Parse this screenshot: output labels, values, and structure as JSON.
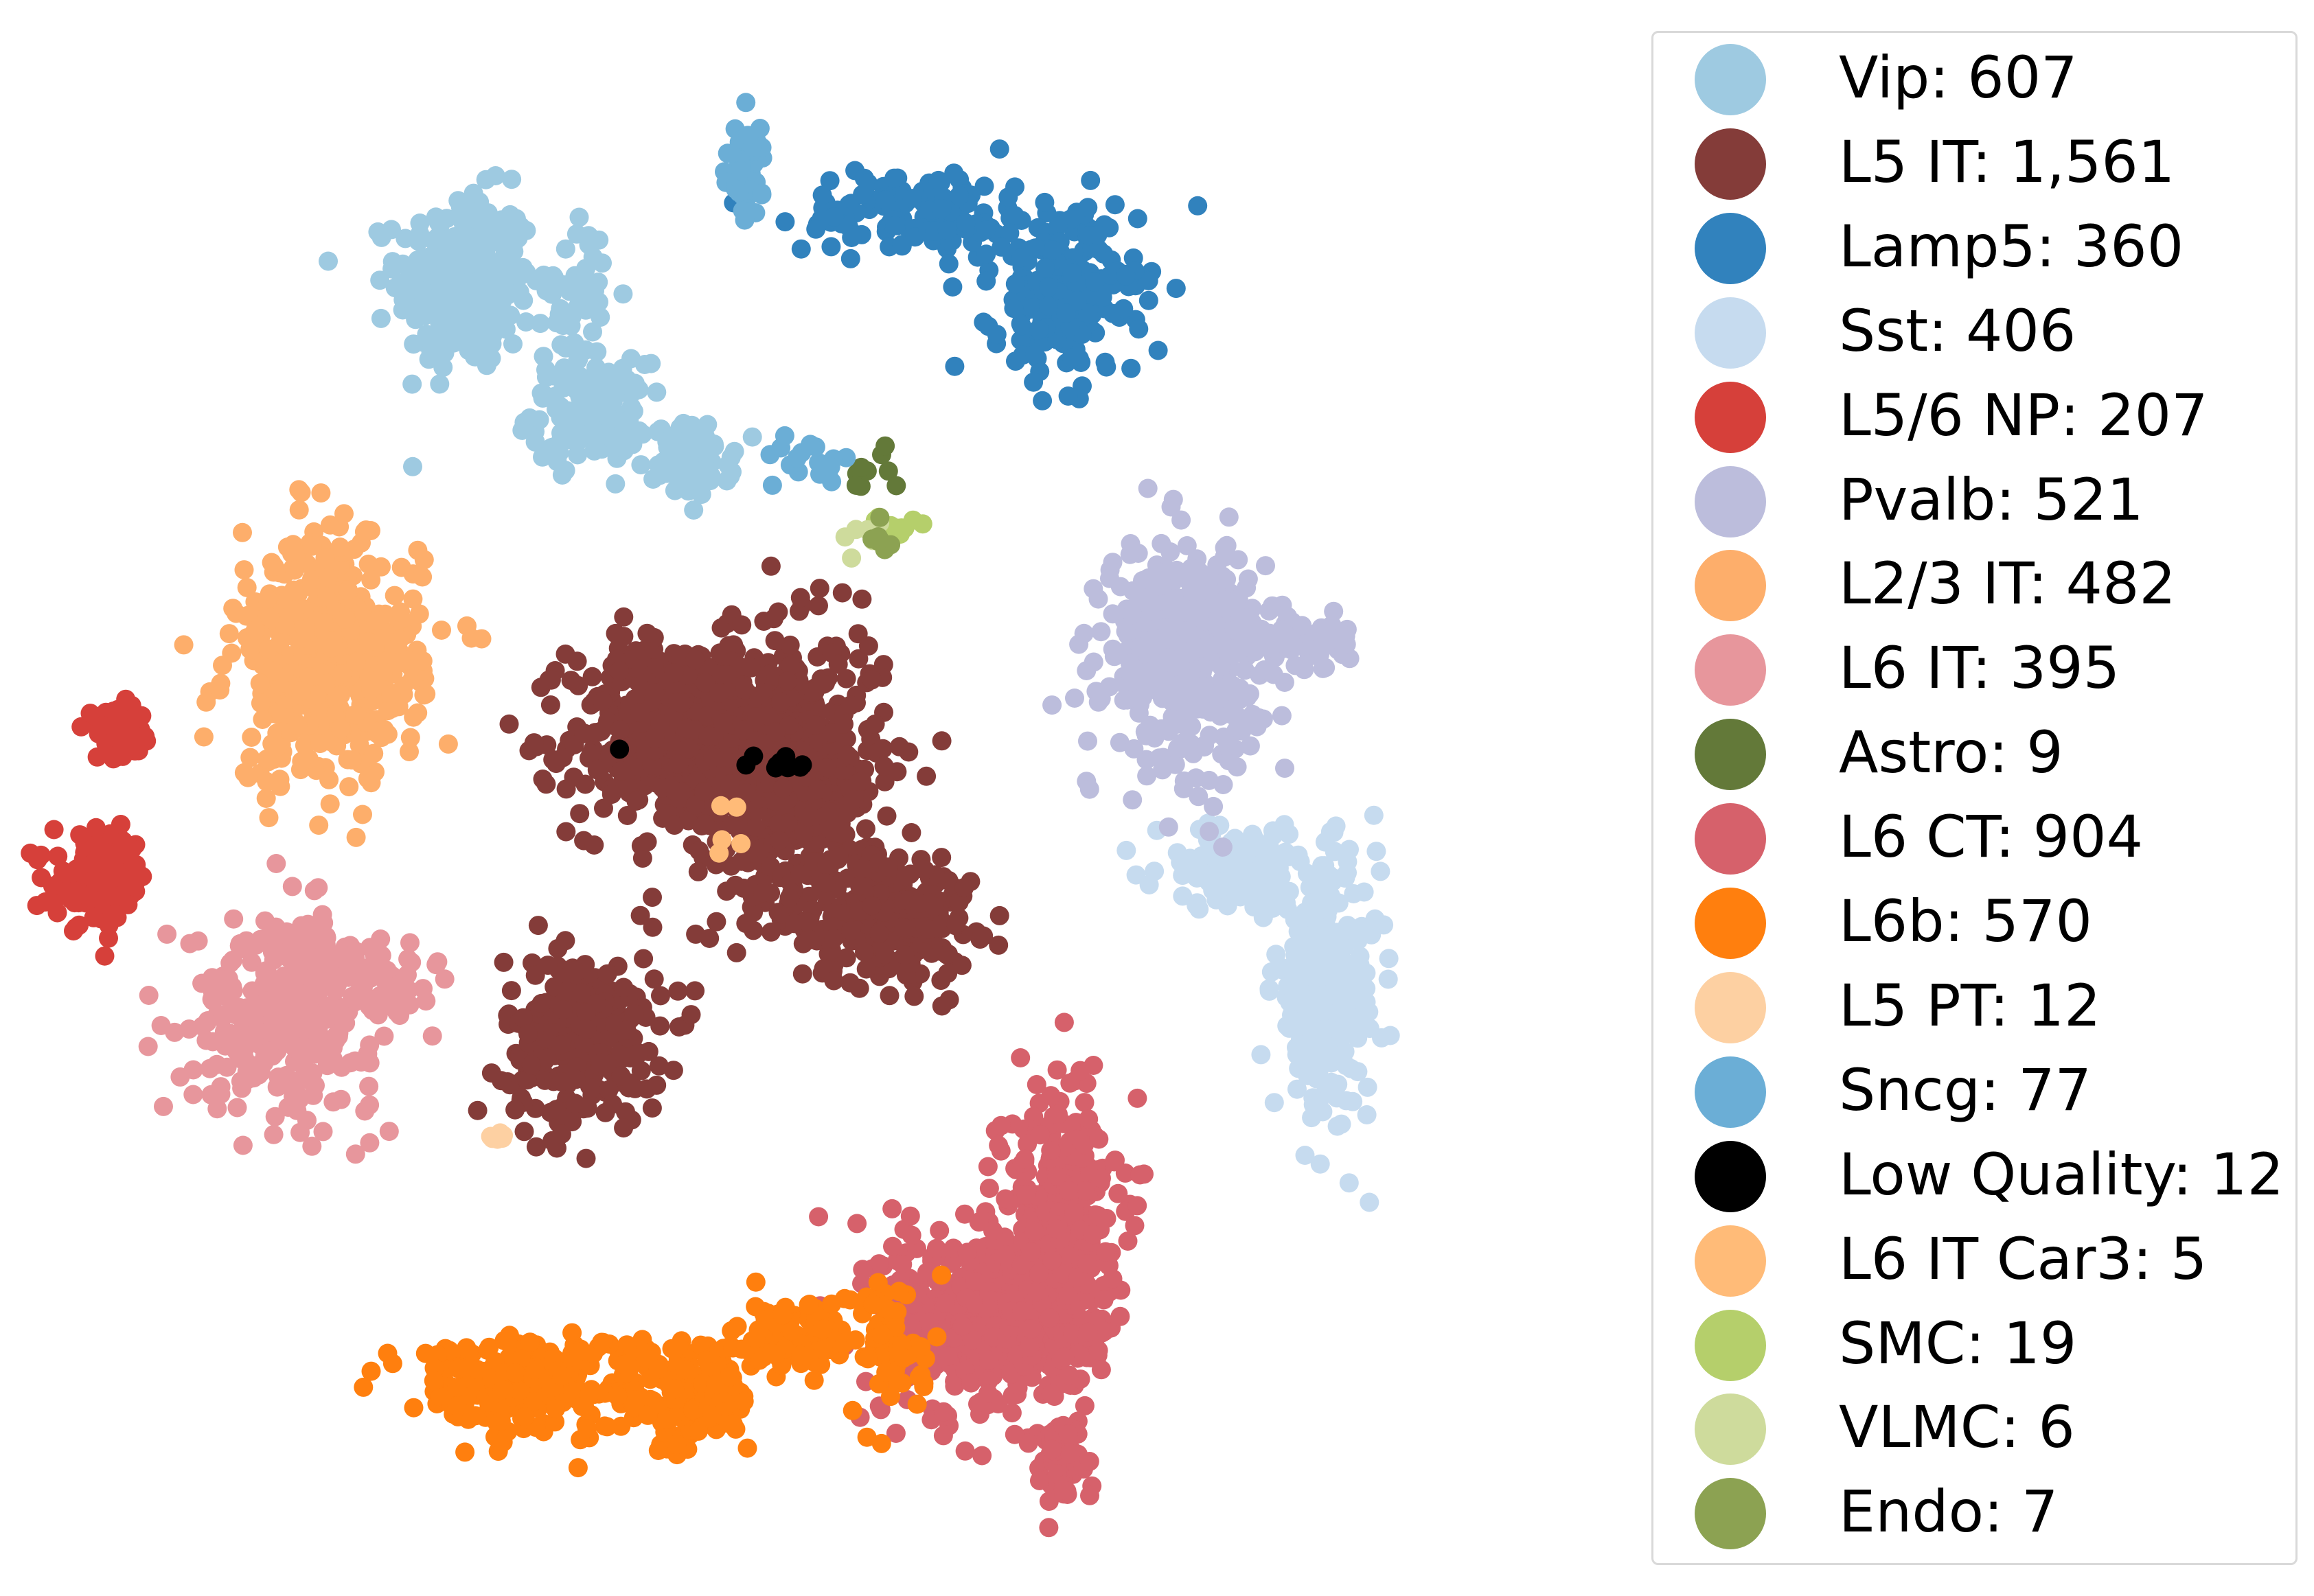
{
  "chart_data": {
    "type": "scatter",
    "title": "",
    "xlabel": "",
    "ylabel": "",
    "axes_visible": false,
    "grid": false,
    "legend_placement": "outside-right",
    "xlim": [
      -60,
      60
    ],
    "ylim": [
      -55,
      55
    ],
    "legend": [
      {
        "label": "Vip: 607",
        "color": "#9ecae1"
      },
      {
        "label": "L5 IT: 1,561",
        "color": "#843c39"
      },
      {
        "label": "Lamp5: 360",
        "color": "#3182bd"
      },
      {
        "label": "Sst: 406",
        "color": "#c6dbef"
      },
      {
        "label": "L5/6 NP: 207",
        "color": "#d6403a"
      },
      {
        "label": "Pvalb: 521",
        "color": "#bcbddc"
      },
      {
        "label": "L2/3 IT: 482",
        "color": "#fdae6b"
      },
      {
        "label": "L6 IT: 395",
        "color": "#e7969c"
      },
      {
        "label": "Astro: 9",
        "color": "#637939"
      },
      {
        "label": "L6 CT: 904",
        "color": "#d6616b"
      },
      {
        "label": "L6b: 570",
        "color": "#ff7f0e"
      },
      {
        "label": "L5 PT: 12",
        "color": "#fdd0a2"
      },
      {
        "label": "Sncg: 77",
        "color": "#6baed6"
      },
      {
        "label": "Low Quality: 12",
        "color": "#000000"
      },
      {
        "label": "L6 IT Car3: 5",
        "color": "#ffbb78"
      },
      {
        "label": "SMC: 19",
        "color": "#b5cf6b"
      },
      {
        "label": "VLMC: 6",
        "color": "#cedb9c"
      },
      {
        "label": "Endo: 7",
        "color": "#8ca252"
      }
    ],
    "series": [
      {
        "name": "Vip: 607",
        "color": "#9ecae1",
        "clusters": [
          {
            "x": -27.5,
            "y": 37.5,
            "sx": 2.6,
            "sy": 3.2,
            "n": 320
          },
          {
            "x": -18,
            "y": 28,
            "sx": 2.2,
            "sy": 1.8,
            "n": 150
          },
          {
            "x": -10,
            "y": 24.5,
            "sx": 1.5,
            "sy": 1.3,
            "n": 90
          },
          {
            "x": -19,
            "y": 37,
            "sx": 1.2,
            "sy": 2.6,
            "n": 47
          }
        ]
      },
      {
        "name": "L5 IT: 1,561",
        "color": "#843c39",
        "clusters": [
          {
            "x": -11,
            "y": 4.5,
            "sx": 4.2,
            "sy": 3.6,
            "n": 520
          },
          {
            "x": -2.5,
            "y": 2,
            "sx": 3.6,
            "sy": 5.0,
            "n": 520
          },
          {
            "x": 4.5,
            "y": -8.5,
            "sx": 3.5,
            "sy": 2.5,
            "n": 240
          },
          {
            "x": -18.5,
            "y": -17.5,
            "sx": 3.0,
            "sy": 3.0,
            "n": 281
          }
        ]
      },
      {
        "name": "Lamp5: 360",
        "color": "#3182bd",
        "clusters": [
          {
            "x": 7.5,
            "y": 42.5,
            "sx": 4.5,
            "sy": 1.6,
            "n": 140
          },
          {
            "x": 18.5,
            "y": 36.5,
            "sx": 2.8,
            "sy": 3.0,
            "n": 220
          }
        ]
      },
      {
        "name": "Sst: 406",
        "color": "#c6dbef",
        "clusters": [
          {
            "x": 32,
            "y": -5,
            "sx": 3.2,
            "sy": 1.5,
            "n": 140
          },
          {
            "x": 38.5,
            "y": -14,
            "sx": 2.0,
            "sy": 4.5,
            "n": 266
          }
        ]
      },
      {
        "name": "L5/6 NP: 207",
        "color": "#d6403a",
        "clusters": [
          {
            "x": -54,
            "y": 4.5,
            "sx": 1.3,
            "sy": 0.9,
            "n": 60
          },
          {
            "x": -55.5,
            "y": -6,
            "sx": 1.8,
            "sy": 1.6,
            "n": 147
          }
        ]
      },
      {
        "name": "Pvalb: 521",
        "color": "#bcbddc",
        "clusters": [
          {
            "x": 27.5,
            "y": 10.5,
            "sx": 3.0,
            "sy": 4.0,
            "n": 421
          },
          {
            "x": 35,
            "y": 11.5,
            "sx": 2.6,
            "sy": 1.2,
            "n": 100
          }
        ]
      },
      {
        "name": "L2/3 IT: 482",
        "color": "#fdae6b",
        "clusters": [
          {
            "x": -38,
            "y": 10,
            "sx": 3.6,
            "sy": 4.5,
            "n": 482
          }
        ]
      },
      {
        "name": "L6 IT: 395",
        "color": "#e7969c",
        "clusters": [
          {
            "x": -41.5,
            "y": -15.5,
            "sx": 3.5,
            "sy": 3.5,
            "n": 330
          },
          {
            "x": -34,
            "y": -13.5,
            "sx": 2.0,
            "sy": 1.4,
            "n": 65
          }
        ]
      },
      {
        "name": "Astro: 9",
        "color": "#637939",
        "clusters": [
          {
            "x": 3.5,
            "y": 23.5,
            "sx": 1.2,
            "sy": 0.9,
            "n": 9
          }
        ]
      },
      {
        "name": "L6 CT: 904",
        "color": "#d6616b",
        "clusters": [
          {
            "x": 12.5,
            "y": -38,
            "sx": 4.0,
            "sy": 3.5,
            "n": 500
          },
          {
            "x": 18,
            "y": -31,
            "sx": 2.2,
            "sy": 5.0,
            "n": 354
          },
          {
            "x": 18,
            "y": -48,
            "sx": 1.1,
            "sy": 1.6,
            "n": 50
          }
        ]
      },
      {
        "name": "L6b: 570",
        "color": "#ff7f0e",
        "clusters": [
          {
            "x": -23,
            "y": -42.5,
            "sx": 4.2,
            "sy": 1.8,
            "n": 260
          },
          {
            "x": -10.5,
            "y": -43.5,
            "sx": 2.4,
            "sy": 2.0,
            "n": 150
          },
          {
            "x": -2,
            "y": -39,
            "sx": 2.2,
            "sy": 1.5,
            "n": 100
          },
          {
            "x": 5.5,
            "y": -40,
            "sx": 1.5,
            "sy": 2.5,
            "n": 60
          }
        ]
      },
      {
        "name": "L5 PT: 12",
        "color": "#fdd0a2",
        "clusters": [
          {
            "x": -25,
            "y": -24.5,
            "sx": 0.4,
            "sy": 0.2,
            "n": 12
          }
        ]
      },
      {
        "name": "Sncg: 77",
        "color": "#6baed6",
        "clusters": [
          {
            "x": -6,
            "y": 45.5,
            "sx": 0.8,
            "sy": 1.8,
            "n": 60
          },
          {
            "x": -2,
            "y": 24.5,
            "sx": 2.0,
            "sy": 1.0,
            "n": 17
          }
        ]
      },
      {
        "name": "Low Quality: 12",
        "color": "#000000",
        "clusters": [
          {
            "x": -3,
            "y": 2.5,
            "sx": 1.0,
            "sy": 0.3,
            "n": 11
          },
          {
            "x": -15.5,
            "y": 3.5,
            "sx": 0.2,
            "sy": 0.2,
            "n": 1
          }
        ]
      },
      {
        "name": "L6 IT Car3: 5",
        "color": "#ffbb78",
        "clusters": [
          {
            "x": -7,
            "y": -2,
            "sx": 1.5,
            "sy": 1.2,
            "n": 5
          }
        ]
      },
      {
        "name": "SMC: 19",
        "color": "#b5cf6b",
        "clusters": [
          {
            "x": 5.5,
            "y": 19.5,
            "sx": 0.8,
            "sy": 0.4,
            "n": 19
          }
        ]
      },
      {
        "name": "VLMC: 6",
        "color": "#cedb9c",
        "clusters": [
          {
            "x": 3,
            "y": 20,
            "sx": 1.0,
            "sy": 1.0,
            "n": 6
          }
        ]
      },
      {
        "name": "Endo: 7",
        "color": "#8ca252",
        "clusters": [
          {
            "x": 4.5,
            "y": 18.5,
            "sx": 0.5,
            "sy": 0.5,
            "n": 7
          }
        ]
      }
    ]
  }
}
